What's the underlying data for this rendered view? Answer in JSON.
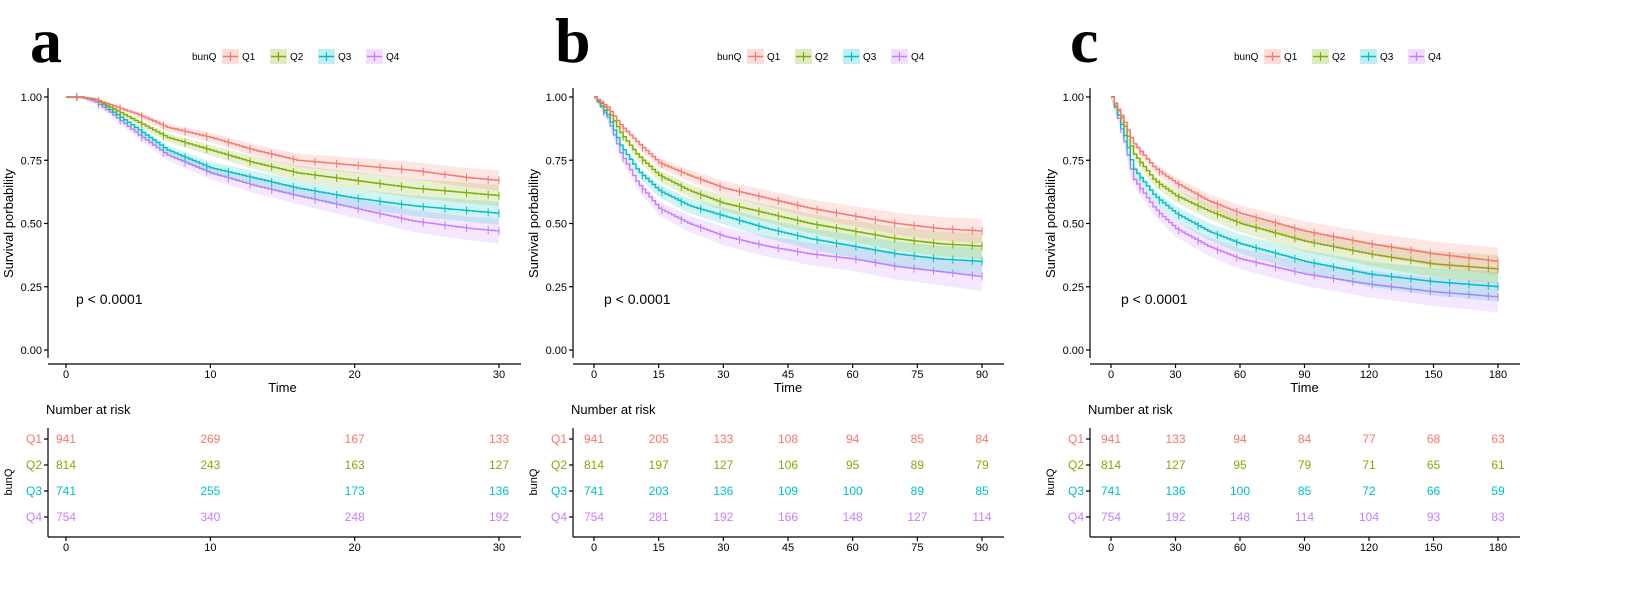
{
  "colors": {
    "Q1": "#F8766D",
    "Q2": "#7CAE00",
    "Q3": "#00BFC4",
    "Q4": "#C77CFF"
  },
  "chart_data": [
    {
      "type": "line",
      "panel": "a",
      "legend_title": "bunQ",
      "groups": [
        "Q1",
        "Q2",
        "Q3",
        "Q4"
      ],
      "xlabel": "Time",
      "ylabel": "Survival porbability",
      "xlim": [
        0,
        30
      ],
      "xticks": [
        0,
        10,
        20,
        30
      ],
      "ylim": [
        0,
        1
      ],
      "yticks": [
        "0.00",
        "0.25",
        "0.50",
        "0.75",
        "1.00"
      ],
      "pvalue": "p < 0.0001",
      "series": [
        {
          "name": "Q1",
          "x": [
            0,
            1,
            2,
            3,
            5,
            7,
            10,
            13,
            16,
            20,
            24,
            28,
            30
          ],
          "y": [
            1,
            1,
            0.99,
            0.97,
            0.93,
            0.88,
            0.84,
            0.79,
            0.75,
            0.73,
            0.71,
            0.68,
            0.67
          ]
        },
        {
          "name": "Q2",
          "x": [
            0,
            1,
            2,
            3,
            5,
            7,
            10,
            13,
            16,
            20,
            24,
            28,
            30
          ],
          "y": [
            1,
            1,
            0.99,
            0.96,
            0.9,
            0.84,
            0.79,
            0.74,
            0.7,
            0.67,
            0.64,
            0.62,
            0.61
          ]
        },
        {
          "name": "Q3",
          "x": [
            0,
            1,
            2,
            3,
            5,
            7,
            10,
            13,
            16,
            20,
            24,
            28,
            30
          ],
          "y": [
            1,
            1,
            0.99,
            0.95,
            0.87,
            0.79,
            0.72,
            0.68,
            0.64,
            0.6,
            0.57,
            0.55,
            0.54
          ]
        },
        {
          "name": "Q4",
          "x": [
            0,
            1,
            2,
            3,
            5,
            7,
            10,
            13,
            16,
            20,
            24,
            28,
            30
          ],
          "y": [
            1,
            1,
            0.98,
            0.94,
            0.85,
            0.77,
            0.7,
            0.65,
            0.61,
            0.56,
            0.51,
            0.48,
            0.47
          ]
        }
      ],
      "risk_table": {
        "title": "Number at risk",
        "ylabel": "bunQ",
        "times": [
          0,
          10,
          20,
          30
        ],
        "rows": [
          {
            "name": "Q1",
            "values": [
              941,
              269,
              167,
              133
            ]
          },
          {
            "name": "Q2",
            "values": [
              814,
              243,
              163,
              127
            ]
          },
          {
            "name": "Q3",
            "values": [
              741,
              255,
              173,
              136
            ]
          },
          {
            "name": "Q4",
            "values": [
              754,
              340,
              248,
              192
            ]
          }
        ]
      }
    },
    {
      "type": "line",
      "panel": "b",
      "legend_title": "bunQ",
      "groups": [
        "Q1",
        "Q2",
        "Q3",
        "Q4"
      ],
      "xlabel": "Time",
      "ylabel": "Survival porbability",
      "xlim": [
        0,
        90
      ],
      "xticks": [
        0,
        15,
        30,
        45,
        60,
        75,
        90
      ],
      "ylim": [
        0,
        1
      ],
      "yticks": [
        "0.00",
        "0.25",
        "0.50",
        "0.75",
        "1.00"
      ],
      "pvalue": "p < 0.0001",
      "series": [
        {
          "name": "Q1",
          "x": [
            0,
            3,
            6,
            10,
            15,
            22,
            30,
            40,
            50,
            60,
            70,
            80,
            90
          ],
          "y": [
            1,
            0.96,
            0.89,
            0.82,
            0.74,
            0.69,
            0.64,
            0.6,
            0.56,
            0.53,
            0.5,
            0.48,
            0.47
          ]
        },
        {
          "name": "Q2",
          "x": [
            0,
            3,
            6,
            10,
            15,
            22,
            30,
            40,
            50,
            60,
            70,
            80,
            90
          ],
          "y": [
            1,
            0.95,
            0.86,
            0.77,
            0.69,
            0.63,
            0.58,
            0.54,
            0.5,
            0.47,
            0.44,
            0.42,
            0.41
          ]
        },
        {
          "name": "Q3",
          "x": [
            0,
            3,
            6,
            10,
            15,
            22,
            30,
            40,
            50,
            60,
            70,
            80,
            90
          ],
          "y": [
            1,
            0.93,
            0.81,
            0.71,
            0.63,
            0.57,
            0.53,
            0.48,
            0.44,
            0.41,
            0.38,
            0.36,
            0.35
          ]
        },
        {
          "name": "Q4",
          "x": [
            0,
            3,
            6,
            10,
            15,
            22,
            30,
            40,
            50,
            60,
            70,
            80,
            90
          ],
          "y": [
            1,
            0.92,
            0.78,
            0.66,
            0.56,
            0.5,
            0.45,
            0.41,
            0.38,
            0.36,
            0.33,
            0.31,
            0.29
          ]
        }
      ],
      "risk_table": {
        "title": "Number at risk",
        "ylabel": "bunQ",
        "times": [
          0,
          15,
          30,
          45,
          60,
          75,
          90
        ],
        "rows": [
          {
            "name": "Q1",
            "values": [
              941,
              205,
              133,
              108,
              94,
              85,
              84
            ]
          },
          {
            "name": "Q2",
            "values": [
              814,
              197,
              127,
              106,
              95,
              89,
              79
            ]
          },
          {
            "name": "Q3",
            "values": [
              741,
              203,
              136,
              109,
              100,
              89,
              85
            ]
          },
          {
            "name": "Q4",
            "values": [
              754,
              281,
              192,
              166,
              148,
              127,
              114
            ]
          }
        ]
      }
    },
    {
      "type": "line",
      "panel": "c",
      "legend_title": "bunQ",
      "groups": [
        "Q1",
        "Q2",
        "Q3",
        "Q4"
      ],
      "xlabel": "Time",
      "ylabel": "Survival porbability",
      "xlim": [
        0,
        180
      ],
      "xticks": [
        0,
        30,
        60,
        90,
        120,
        150,
        180
      ],
      "ylim": [
        0,
        1
      ],
      "yticks": [
        "0.00",
        "0.25",
        "0.50",
        "0.75",
        "1.00"
      ],
      "pvalue": "p < 0.0001",
      "series": [
        {
          "name": "Q1",
          "x": [
            0,
            5,
            10,
            20,
            30,
            45,
            60,
            90,
            120,
            150,
            180
          ],
          "y": [
            1,
            0.92,
            0.82,
            0.72,
            0.66,
            0.59,
            0.54,
            0.47,
            0.42,
            0.38,
            0.35
          ]
        },
        {
          "name": "Q2",
          "x": [
            0,
            5,
            10,
            20,
            30,
            45,
            60,
            90,
            120,
            150,
            180
          ],
          "y": [
            1,
            0.91,
            0.78,
            0.67,
            0.61,
            0.55,
            0.5,
            0.43,
            0.38,
            0.34,
            0.32
          ]
        },
        {
          "name": "Q3",
          "x": [
            0,
            5,
            10,
            20,
            30,
            45,
            60,
            90,
            120,
            150,
            180
          ],
          "y": [
            1,
            0.88,
            0.72,
            0.61,
            0.54,
            0.47,
            0.42,
            0.35,
            0.3,
            0.27,
            0.25
          ]
        },
        {
          "name": "Q4",
          "x": [
            0,
            5,
            10,
            20,
            30,
            45,
            60,
            90,
            120,
            150,
            180
          ],
          "y": [
            1,
            0.86,
            0.68,
            0.56,
            0.48,
            0.41,
            0.36,
            0.3,
            0.26,
            0.23,
            0.21
          ]
        }
      ],
      "risk_table": {
        "title": "Number at risk",
        "ylabel": "bunQ",
        "times": [
          0,
          30,
          60,
          90,
          120,
          150,
          180
        ],
        "rows": [
          {
            "name": "Q1",
            "values": [
              941,
              133,
              94,
              84,
              77,
              68,
              63
            ]
          },
          {
            "name": "Q2",
            "values": [
              814,
              127,
              95,
              79,
              71,
              65,
              61
            ]
          },
          {
            "name": "Q3",
            "values": [
              741,
              136,
              100,
              85,
              72,
              66,
              59
            ]
          },
          {
            "name": "Q4",
            "values": [
              754,
              192,
              148,
              114,
              104,
              93,
              83
            ]
          }
        ]
      }
    }
  ]
}
